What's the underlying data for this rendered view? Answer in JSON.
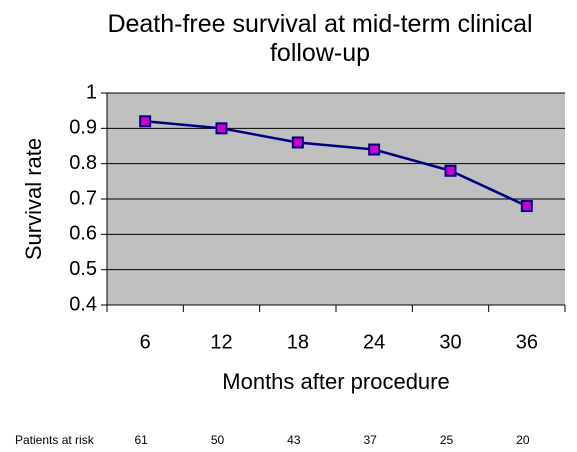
{
  "chart_data": {
    "type": "line",
    "title": "Death-free survival at mid-term clinical follow-up",
    "x_label": "Months after procedure",
    "y_label": "Survival rate",
    "categories": [
      "6",
      "12",
      "18",
      "24",
      "30",
      "36"
    ],
    "series": [
      {
        "name": "Survival rate",
        "color": "#000080",
        "marker_color": "#cc00cc",
        "values": [
          0.92,
          0.9,
          0.86,
          0.84,
          0.78,
          0.68
        ]
      }
    ],
    "ylim": [
      0.4,
      1
    ],
    "yticks": [
      0.4,
      0.5,
      0.6,
      0.7,
      0.8,
      0.9,
      1
    ],
    "grid": true,
    "background": "#c0c0c0",
    "patients_at_risk": {
      "label": "Patients at risk",
      "values": [
        61,
        50,
        43,
        37,
        25,
        20
      ]
    }
  }
}
